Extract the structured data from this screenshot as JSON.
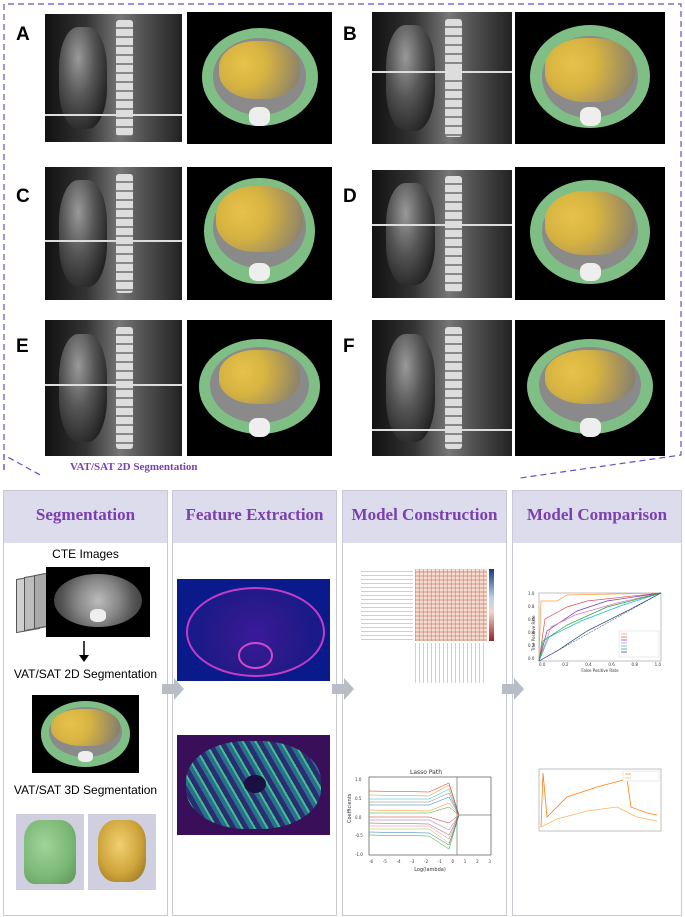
{
  "top": {
    "panels": [
      {
        "letter": "A"
      },
      {
        "letter": "B"
      },
      {
        "letter": "C"
      },
      {
        "letter": "D"
      },
      {
        "letter": "E"
      },
      {
        "letter": "F"
      }
    ],
    "caption": "VAT/SAT 2D Segmentation"
  },
  "stages": {
    "segmentation": {
      "title": "Segmentation",
      "cte_label": "CTE Images",
      "seg2d_label": "VAT/SAT 2D Segmentation",
      "seg3d_label": "VAT/SAT 3D Segmentation"
    },
    "feature": {
      "title": "Feature Extraction"
    },
    "model": {
      "title": "Model Construction",
      "lasso_title": "Lasso Path",
      "lasso_xlabel": "Log(lambda)",
      "lasso_ylabel": "Coefficients",
      "lasso_xticks": [
        "-6",
        "-5",
        "-4",
        "-3",
        "-2",
        "-1",
        "0",
        "1",
        "2",
        "3"
      ],
      "lasso_yticks": [
        "1.0",
        "0.5",
        "0.0",
        "-0.5",
        "-1.0"
      ]
    },
    "comparison": {
      "title": "Model Comparison",
      "roc_xlabel": "False Positive Rate",
      "roc_ylabel": "True Positive Rate",
      "roc_xticks": [
        "0.0",
        "0.2",
        "0.4",
        "0.6",
        "0.8",
        "1.0"
      ],
      "roc_yticks": [
        "1.0",
        "0.8",
        "0.6",
        "0.4",
        "0.2",
        "0.0"
      ]
    }
  },
  "colors": {
    "accent": "#7b3fb0",
    "header_bg": "#dcdcec",
    "dash_border": "#5a55c8",
    "sat_green": "#7fbf86",
    "vat_yellow": "#e8c24a",
    "arrow_gray": "#b8bcc4"
  }
}
